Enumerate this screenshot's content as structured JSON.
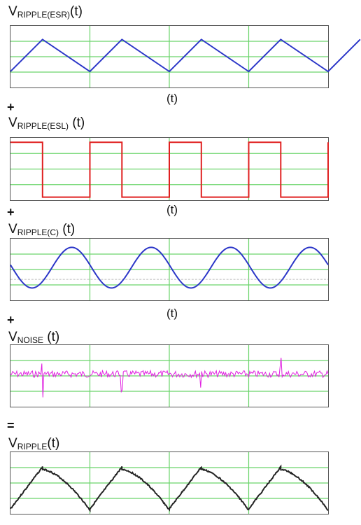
{
  "panels": [
    {
      "main": "V",
      "sub": "RIPPLE(ESR)",
      "suffix": "(t)",
      "shape": "triangle",
      "color": "#2b36c8"
    },
    {
      "main": "V",
      "sub": "RIPPLE(ESL)",
      "suffix": " (t)",
      "shape": "square",
      "color": "#e02020"
    },
    {
      "main": "V",
      "sub": "RIPPLE(C)",
      "suffix": " (t)",
      "shape": "sine",
      "color": "#2b36c8"
    },
    {
      "main": "V",
      "sub": "NOISE",
      "suffix": " (t)",
      "shape": "noise",
      "color": "#e020e0"
    },
    {
      "main": "V",
      "sub": "RIPPLE",
      "suffix": "(t)",
      "shape": "sum",
      "color": "#222222"
    }
  ],
  "operators": {
    "plus": "+",
    "equals": "="
  },
  "time_label": "(t)",
  "grid_color": "#6bd46b"
}
